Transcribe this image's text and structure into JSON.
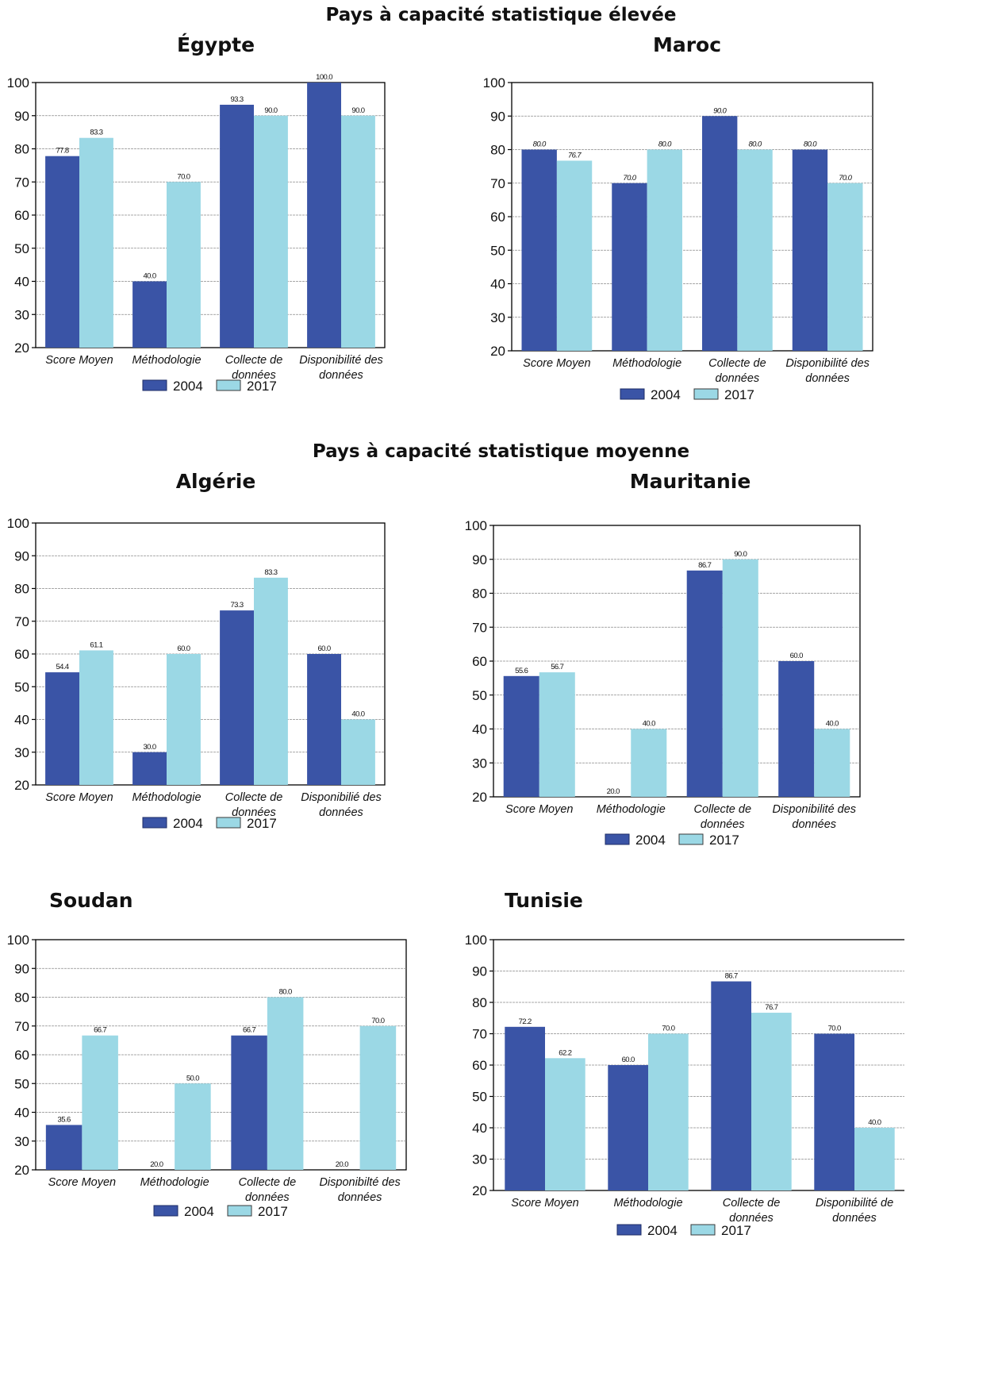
{
  "sections": [
    {
      "title": "Pays à capacité statistique élevée"
    },
    {
      "title": "Pays à capacité statistique moyenne"
    }
  ],
  "colors": {
    "s2004": "#3a54a6",
    "s2017": "#9bd8e5",
    "axis": "#000000",
    "grid": "#8a8a8a"
  },
  "chart_data": [
    {
      "type": "bar",
      "title": "Égypte",
      "categories": [
        [
          "Score Moyen"
        ],
        [
          "Méthodologie"
        ],
        [
          "Collecte de",
          "données"
        ],
        [
          "Disponibilité des",
          "données"
        ]
      ],
      "series": [
        {
          "name": "2004",
          "values": [
            77.8,
            40.0,
            93.3,
            100.0
          ]
        },
        {
          "name": "2017",
          "values": [
            83.3,
            70.0,
            90.0,
            90.0
          ]
        }
      ],
      "labels": [
        [
          "77.8",
          "40.0",
          "93.3",
          "100.0"
        ],
        [
          "83.3",
          "70.0",
          "90.0",
          "90.0"
        ]
      ],
      "ylim": [
        20,
        100
      ],
      "yticks": [
        "20",
        "30",
        "40",
        "50",
        "60",
        "70",
        "80",
        "90",
        "100"
      ],
      "grid": true,
      "legend": "bottom"
    },
    {
      "type": "bar",
      "title": "Maroc",
      "categories": [
        [
          "Score Moyen"
        ],
        [
          "Méthodologie"
        ],
        [
          "Collecte de",
          "données"
        ],
        [
          "Disponibilité des",
          "données"
        ]
      ],
      "series": [
        {
          "name": "2004",
          "values": [
            80.0,
            70.0,
            90.0,
            80.0
          ]
        },
        {
          "name": "2017",
          "values": [
            76.7,
            80.0,
            80.0,
            70.0
          ]
        }
      ],
      "labels": [
        [
          "80.0",
          "70.0",
          "90.0",
          "80.0"
        ],
        [
          "76.7",
          "80.0",
          "80.0",
          "70.0"
        ]
      ],
      "ylim": [
        20,
        100
      ],
      "yticks": [
        "20",
        "30",
        "40",
        "50",
        "60",
        "70",
        "80",
        "90",
        "100"
      ],
      "grid": true,
      "legend": "bottom"
    },
    {
      "type": "bar",
      "title": "Algérie",
      "categories": [
        [
          "Score Moyen"
        ],
        [
          "Méthodologie"
        ],
        [
          "Collecte de",
          "données"
        ],
        [
          "Disponibilié des",
          "données"
        ]
      ],
      "series": [
        {
          "name": "2004",
          "values": [
            54.4,
            30.0,
            73.3,
            60.0
          ]
        },
        {
          "name": "2017",
          "values": [
            61.1,
            60.0,
            83.3,
            40.0
          ]
        }
      ],
      "labels": [
        [
          "54.4",
          "30.0",
          "73.3",
          "60.0"
        ],
        [
          "61.1",
          "60.0",
          "83.3",
          "40.0"
        ]
      ],
      "ylim": [
        20,
        100
      ],
      "yticks": [
        "20",
        "30",
        "40",
        "50",
        "60",
        "70",
        "80",
        "90",
        "100"
      ],
      "grid": true,
      "legend": "bottom"
    },
    {
      "type": "bar",
      "title": "Mauritanie",
      "categories": [
        [
          "Score Moyen"
        ],
        [
          "Méthodologie"
        ],
        [
          "Collecte de",
          "données"
        ],
        [
          "Disponibilité des",
          "données"
        ]
      ],
      "series": [
        {
          "name": "2004",
          "values": [
            55.6,
            20.0,
            86.7,
            60.0
          ]
        },
        {
          "name": "2017",
          "values": [
            56.7,
            40.0,
            90.0,
            40.0
          ]
        }
      ],
      "labels": [
        [
          "55.6",
          "20.0",
          "86.7",
          "60.0"
        ],
        [
          "56.7",
          "40.0",
          "90.0",
          "40.0"
        ]
      ],
      "ylim": [
        20,
        100
      ],
      "yticks": [
        "20",
        "30",
        "40",
        "50",
        "60",
        "70",
        "80",
        "90",
        "100"
      ],
      "grid": true,
      "legend": "bottom"
    },
    {
      "type": "bar",
      "title": "Soudan",
      "categories": [
        [
          "Score Moyen"
        ],
        [
          "Méthodologie"
        ],
        [
          "Collecte de",
          "données"
        ],
        [
          "Disponibilté des",
          "données"
        ]
      ],
      "series": [
        {
          "name": "2004",
          "values": [
            35.6,
            20.0,
            66.7,
            20.0
          ]
        },
        {
          "name": "2017",
          "values": [
            66.7,
            50.0,
            80.0,
            70.0
          ]
        }
      ],
      "labels": [
        [
          "35.6",
          "20.0",
          "66.7",
          "20.0"
        ],
        [
          "66.7",
          "50.0",
          "80.0",
          "70.0"
        ]
      ],
      "ylim": [
        20,
        100
      ],
      "yticks": [
        "20",
        "30",
        "40",
        "50",
        "60",
        "70",
        "80",
        "90",
        "100"
      ],
      "grid": true,
      "legend": "bottom"
    },
    {
      "type": "bar",
      "title": "Tunisie",
      "categories": [
        [
          "Score Moyen"
        ],
        [
          "Méthodologie"
        ],
        [
          "Collecte de",
          "données"
        ],
        [
          "Disponibilité de",
          "données"
        ]
      ],
      "series": [
        {
          "name": "2004",
          "values": [
            72.2,
            60.0,
            86.7,
            70.0
          ]
        },
        {
          "name": "2017",
          "values": [
            62.2,
            70.0,
            76.7,
            40.0
          ]
        }
      ],
      "labels": [
        [
          "72.2",
          "60.0",
          "86.7",
          "70.0"
        ],
        [
          "62.2",
          "70.0",
          "76.7",
          "40.0"
        ]
      ],
      "ylim": [
        20,
        100
      ],
      "yticks": [
        "20",
        "30",
        "40",
        "50",
        "60",
        "70",
        "80",
        "90",
        "100"
      ],
      "grid": true,
      "legend": "bottom"
    }
  ]
}
